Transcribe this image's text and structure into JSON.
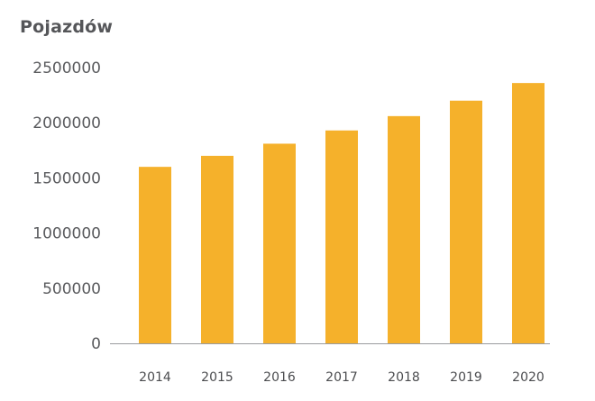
{
  "chart_data": {
    "type": "bar",
    "title": "Pojazdów",
    "xlabel": "",
    "ylabel": "",
    "categories": [
      "2014",
      "2015",
      "2016",
      "2017",
      "2018",
      "2019",
      "2020"
    ],
    "values": [
      1600000,
      1700000,
      1810000,
      1930000,
      2060000,
      2200000,
      2360000
    ],
    "ylim": [
      0,
      2500000
    ],
    "yticks": [
      "0",
      "500000",
      "1000000",
      "1500000",
      "2000000",
      "2500000"
    ],
    "grid": false,
    "legend": "none",
    "bar_color": "#F5B12B",
    "axis_color": "#9a9b9e"
  }
}
